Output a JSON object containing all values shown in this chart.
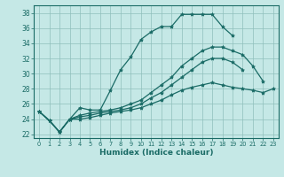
{
  "xlabel": "Humidex (Indice chaleur)",
  "bg_color": "#c5e8e6",
  "grid_color": "#8fbfbc",
  "line_color": "#1a6b66",
  "xlim": [
    -0.5,
    23.5
  ],
  "ylim": [
    21.5,
    39.0
  ],
  "xticks": [
    0,
    1,
    2,
    3,
    4,
    5,
    6,
    7,
    8,
    9,
    10,
    11,
    12,
    13,
    14,
    15,
    16,
    17,
    18,
    19,
    20,
    21,
    22,
    23
  ],
  "yticks": [
    22,
    24,
    26,
    28,
    30,
    32,
    34,
    36,
    38
  ],
  "x_values": [
    0,
    1,
    2,
    3,
    4,
    5,
    6,
    7,
    8,
    9,
    10,
    11,
    12,
    13,
    14,
    15,
    16,
    17,
    18,
    19,
    20,
    21,
    22,
    23
  ],
  "lines": [
    [
      25.0,
      23.8,
      22.3,
      24.0,
      25.5,
      25.2,
      25.2,
      27.8,
      30.5,
      32.2,
      34.5,
      35.5,
      36.2,
      36.2,
      37.8,
      37.8,
      37.8,
      37.8,
      36.2,
      35.0,
      null,
      null,
      null,
      null
    ],
    [
      25.0,
      23.8,
      22.3,
      24.0,
      24.5,
      24.8,
      25.0,
      25.2,
      25.5,
      26.0,
      26.5,
      27.5,
      28.5,
      29.5,
      31.0,
      32.0,
      33.0,
      33.5,
      33.5,
      33.0,
      32.5,
      31.0,
      29.0,
      null
    ],
    [
      25.0,
      23.8,
      22.3,
      24.0,
      24.3,
      24.5,
      24.8,
      25.0,
      25.2,
      25.5,
      26.0,
      26.8,
      27.5,
      28.5,
      29.5,
      30.5,
      31.5,
      32.0,
      32.0,
      31.5,
      30.5,
      null,
      null,
      null
    ],
    [
      25.0,
      23.8,
      22.3,
      24.0,
      24.0,
      24.2,
      24.5,
      24.8,
      25.0,
      25.2,
      25.5,
      26.0,
      26.5,
      27.2,
      27.8,
      28.2,
      28.5,
      28.8,
      28.5,
      28.2,
      28.0,
      27.8,
      27.5,
      28.0
    ]
  ]
}
